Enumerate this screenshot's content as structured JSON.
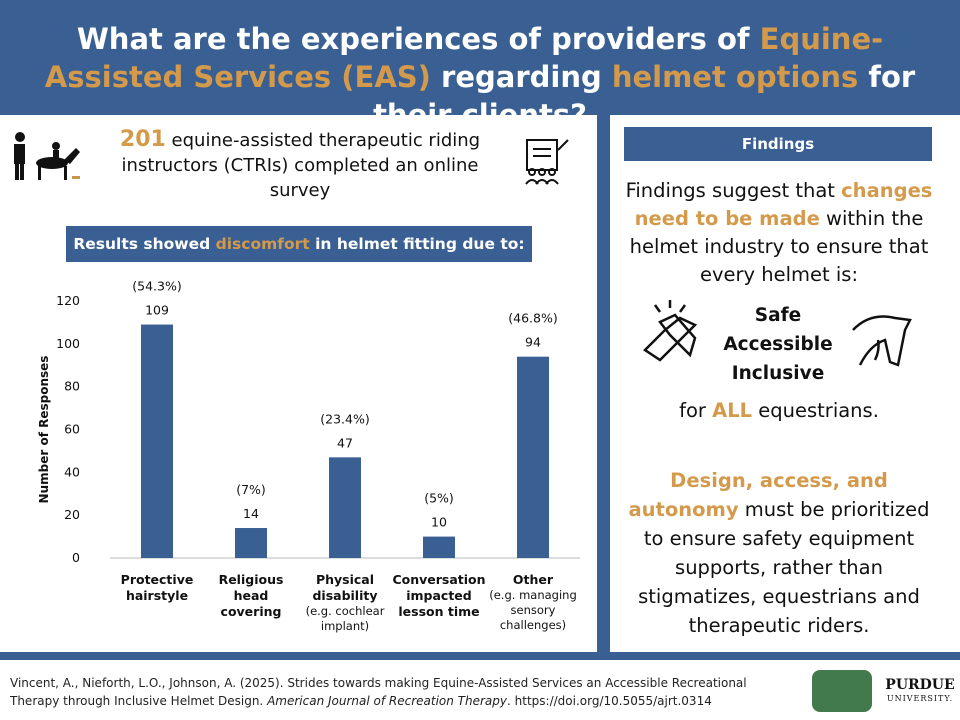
{
  "header": {
    "title_parts": [
      "What are the experiences of providers of ",
      "Equine-Assisted Services (EAS)",
      " regarding ",
      "helmet options",
      " for their clients?"
    ]
  },
  "intro": {
    "number": "201",
    "text": " equine-assisted therapeutic riding instructors (CTRIs) completed an online survey"
  },
  "results_banner": [
    "Results showed ",
    "discomfort",
    " in helmet fitting due to:"
  ],
  "chart_data": {
    "type": "bar",
    "ylabel": "Number of Responses",
    "categories": [
      "Protective hairstyle",
      "Religious head covering",
      "Physical disability",
      "Conversation impacted lesson time",
      "Other"
    ],
    "category_notes": [
      null,
      null,
      "(e.g. cochlear implant)",
      null,
      "(e.g. managing sensory challenges)"
    ],
    "values": [
      109,
      14,
      47,
      10,
      94
    ],
    "percent_labels": [
      "(54.3%)",
      "(7%)",
      "(23.4%)",
      "(5%)",
      "(46.8%)"
    ],
    "color": "#3a5f93",
    "ylim": [
      0,
      120
    ],
    "yticks": [
      0,
      20,
      40,
      60,
      80,
      100,
      120
    ],
    "grid": false
  },
  "findings": {
    "heading": "Findings",
    "para1": [
      "Findings suggest that ",
      "changes need to be made",
      " within the helmet industry to ensure that every helmet is:"
    ],
    "qualities": [
      "Safe",
      "Accessible",
      "Inclusive"
    ],
    "para2": [
      "for ",
      "ALL",
      " equestrians."
    ],
    "para3": [
      "Design, access, and autonomy",
      " must be prioritized to ensure safety equipment supports, rather than stigmatizes, equestrians and therapeutic riders."
    ]
  },
  "citation": [
    "Vincent, A., Nieforth, L.O., Johnson, A. (2025). Strides towards making Equine-Assisted Services an Accessible Recreational Therapy through Inclusive Helmet Design. ",
    "American Journal of Recreation Therapy",
    ". https://doi.org/10.5055/ajrt.0314"
  ],
  "logos": [
    "PURDUE",
    "UNIVERSITY."
  ]
}
